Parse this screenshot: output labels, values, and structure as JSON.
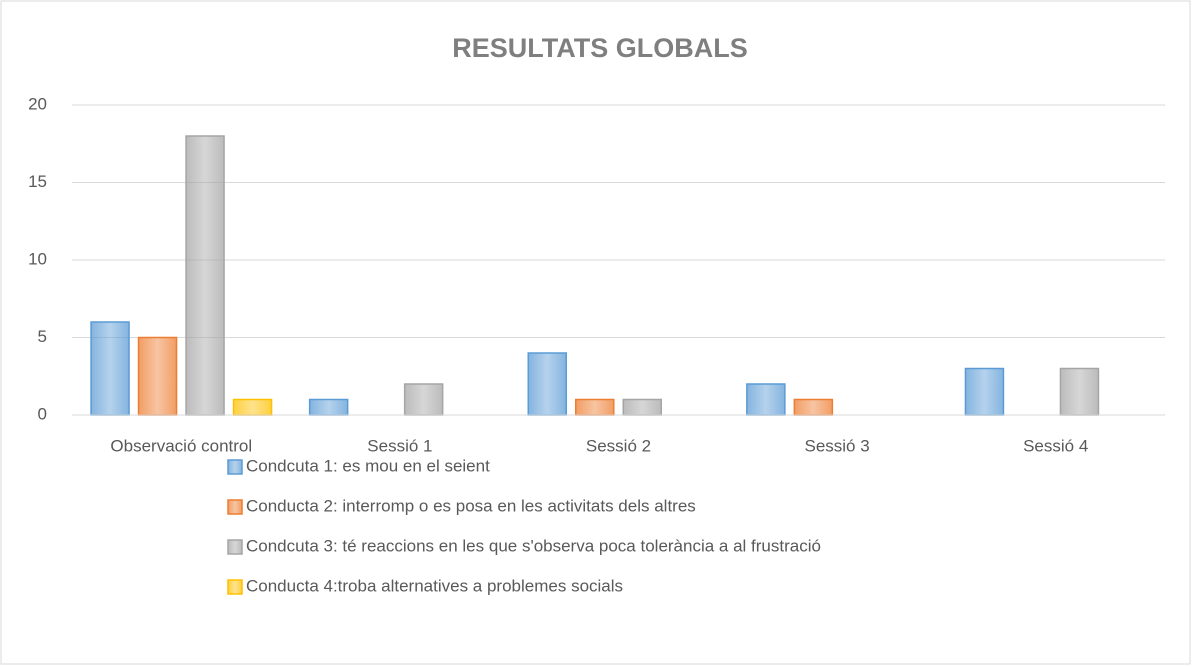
{
  "chart_data": {
    "type": "bar",
    "title": "RESULTATS GLOBALS",
    "categories": [
      "Observació control",
      "Sessió 1",
      "Sessió 2",
      "Sessió 3",
      "Sessió 4"
    ],
    "series": [
      {
        "name": "Condcuta  1: es mou en el seient",
        "color": "#5b9bd5",
        "values": [
          6,
          1,
          4,
          2,
          3
        ]
      },
      {
        "name": "Conducta 2: interromp o es posa en les activitats dels altres",
        "color": "#ed7d31",
        "values": [
          5,
          0,
          1,
          1,
          0
        ]
      },
      {
        "name": "Condcuta 3: té reaccions en les que s'observa poca tolerància a al frustració",
        "color": "#a5a5a5",
        "values": [
          18,
          2,
          1,
          0,
          3
        ]
      },
      {
        "name": "Conducta 4:troba alternatives a problemes socials",
        "color": "#ffc000",
        "values": [
          1,
          0,
          0,
          0,
          0
        ]
      }
    ],
    "ylim": [
      0,
      20
    ],
    "yticks": [
      0,
      5,
      10,
      15,
      20
    ],
    "grid": true,
    "legend": "bottom"
  }
}
